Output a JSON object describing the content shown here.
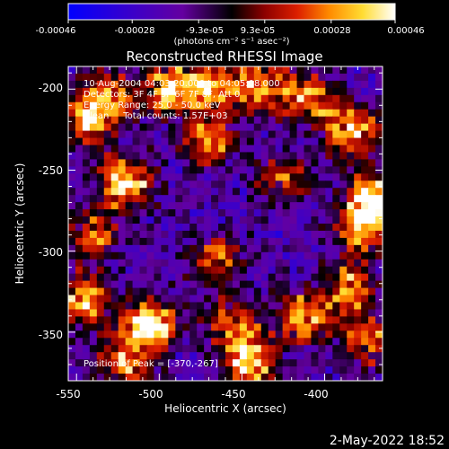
{
  "colorbar": {
    "tick_labels": [
      "-0.00046",
      "-0.00028",
      "-9.3e-05",
      "9.3e-05",
      "0.00028",
      "0.00046"
    ],
    "units_label": "(photons cm⁻² s⁻¹ asec⁻²)",
    "min": -0.00046,
    "max": 0.00046
  },
  "plot": {
    "title": "Reconstructed RHESSI Image",
    "xlabel": "Heliocentric X (arcsec)",
    "ylabel": "Heliocentric Y (arcsec)",
    "x_ticks": [
      "-550",
      "-500",
      "-450",
      "-400"
    ],
    "y_ticks": [
      "-200",
      "-250",
      "-300",
      "-350"
    ],
    "xlim": [
      -555,
      -365
    ],
    "ylim": [
      -380,
      -186
    ],
    "info_lines": [
      "10-Aug-2004 04:03:20.000 to 04:05:08.000",
      "Detectors: 3F 4F 5F 6F 7F 8F, Att 0",
      "Energy Range: 25.0 - 50.0 keV",
      "Clean     Total counts: 1.57E+03"
    ],
    "peak_label": "Position of Peak = [-370,-267]"
  },
  "footer": {
    "timestamp": "2-May-2022 18:52"
  },
  "colors": {
    "background": "#000000",
    "foreground": "#ffffff"
  },
  "chart_data": {
    "type": "heatmap",
    "title": "Reconstructed RHESSI Image",
    "xlabel": "Heliocentric X (arcsec)",
    "ylabel": "Heliocentric Y (arcsec)",
    "xlim": [
      -555,
      -365
    ],
    "ylim": [
      -380,
      -186
    ],
    "color_range": [
      -0.00046,
      0.00046
    ],
    "peak_position": [
      -370,
      -267
    ],
    "colormap": [
      "#0000ff",
      "#3c00c8",
      "#6400a0",
      "#000000",
      "#8c0000",
      "#dc1e00",
      "#ff8c00",
      "#ffdc32",
      "#ffffff"
    ],
    "hotspots": [
      {
        "x": -545,
        "y": -220,
        "value": 0.0003
      },
      {
        "x": -520,
        "y": -258,
        "value": 0.00042
      },
      {
        "x": -530,
        "y": -205,
        "value": 0.00028
      },
      {
        "x": -495,
        "y": -200,
        "value": 0.00035
      },
      {
        "x": -470,
        "y": -198,
        "value": 0.00032
      },
      {
        "x": -470,
        "y": -230,
        "value": 0.00026
      },
      {
        "x": -440,
        "y": -198,
        "value": 0.00036
      },
      {
        "x": -410,
        "y": -205,
        "value": 0.00028
      },
      {
        "x": -385,
        "y": -225,
        "value": 0.0004
      },
      {
        "x": -370,
        "y": -267,
        "value": 0.00046
      },
      {
        "x": -378,
        "y": -285,
        "value": 0.0003
      },
      {
        "x": -545,
        "y": -330,
        "value": 0.00036
      },
      {
        "x": -505,
        "y": -345,
        "value": 0.00044
      },
      {
        "x": -520,
        "y": -368,
        "value": 0.0003
      },
      {
        "x": -455,
        "y": -345,
        "value": 0.00024
      },
      {
        "x": -445,
        "y": -368,
        "value": 0.00038
      },
      {
        "x": -412,
        "y": -340,
        "value": 0.00034
      },
      {
        "x": -385,
        "y": -322,
        "value": 0.00026
      },
      {
        "x": -375,
        "y": -355,
        "value": 0.00022
      },
      {
        "x": -465,
        "y": -305,
        "value": 0.00018
      },
      {
        "x": -540,
        "y": -290,
        "value": 0.0002
      },
      {
        "x": -425,
        "y": -255,
        "value": 0.00016
      }
    ]
  }
}
